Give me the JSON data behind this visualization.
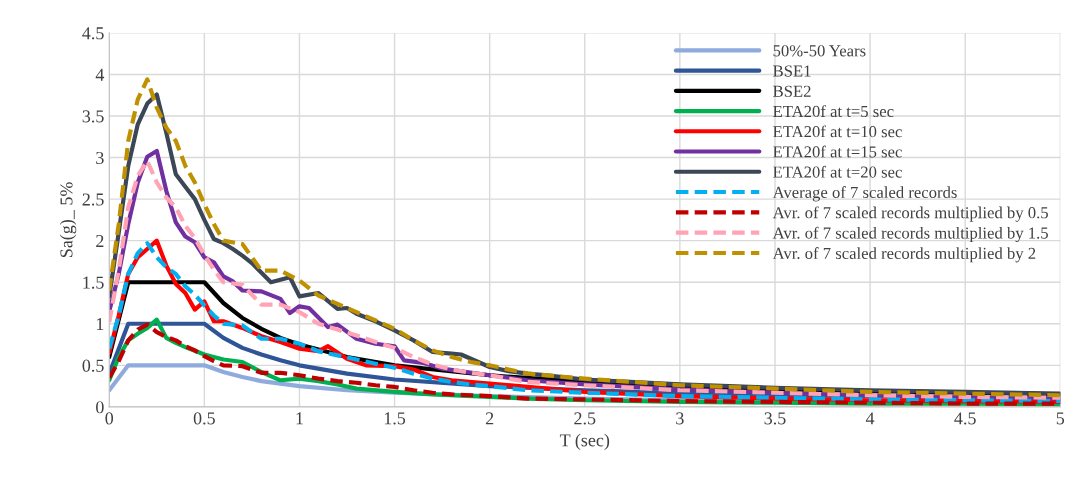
{
  "chart_data": {
    "type": "line",
    "xlabel": "T (sec)",
    "ylabel": "Sa(g)_ 5%",
    "xlim": [
      0,
      5
    ],
    "xticks": [
      0,
      0.5,
      1,
      1.5,
      2,
      2.5,
      3,
      3.5,
      4,
      4.5,
      5
    ],
    "ylim": [
      0,
      4.5
    ],
    "yticks": [
      0,
      0.5,
      1,
      1.5,
      2,
      2.5,
      3,
      3.5,
      4,
      4.5
    ],
    "grid": true,
    "legend": "top right",
    "marker": "none",
    "series": [
      {
        "name": "50%-50 Years",
        "color": "#8faadc",
        "line_style": "solid",
        "x": [
          0,
          0.1,
          0.5,
          0.6,
          0.7,
          0.8,
          0.9,
          1,
          1.25,
          1.5,
          2,
          2.5,
          3,
          3.5,
          4,
          4.5,
          5
        ],
        "values": [
          0.2,
          0.5,
          0.5,
          0.42,
          0.36,
          0.31,
          0.28,
          0.25,
          0.2,
          0.17,
          0.13,
          0.1,
          0.08,
          0.07,
          0.06,
          0.06,
          0.05
        ]
      },
      {
        "name": "BSE1",
        "color": "#2f5597",
        "line_style": "solid",
        "x": [
          0,
          0.1,
          0.5,
          0.6,
          0.7,
          0.8,
          0.9,
          1,
          1.25,
          1.5,
          2,
          2.5,
          3,
          3.5,
          4,
          4.5,
          5
        ],
        "values": [
          0.4,
          1,
          1,
          0.83,
          0.71,
          0.63,
          0.56,
          0.5,
          0.4,
          0.33,
          0.25,
          0.2,
          0.17,
          0.14,
          0.13,
          0.11,
          0.1
        ]
      },
      {
        "name": "BSE2",
        "color": "#000000",
        "line_style": "solid",
        "x": [
          0,
          0.1,
          0.5,
          0.6,
          0.7,
          0.8,
          0.9,
          1,
          1.25,
          1.5,
          2,
          2.5,
          3,
          3.5,
          4,
          4.5,
          5
        ],
        "values": [
          0.6,
          1.5,
          1.5,
          1.25,
          1.07,
          0.94,
          0.83,
          0.75,
          0.6,
          0.5,
          0.38,
          0.3,
          0.25,
          0.21,
          0.19,
          0.17,
          0.15
        ]
      },
      {
        "name": "ETA20f at t=5 sec",
        "color": "#00b050",
        "line_style": "solid",
        "x": [
          0,
          0.05,
          0.1,
          0.15,
          0.2,
          0.25,
          0.3,
          0.35,
          0.4,
          0.5,
          0.6,
          0.7,
          0.8,
          0.9,
          1.0,
          1.1,
          1.2,
          1.3,
          1.5,
          1.7,
          2.0,
          2.2,
          2.5,
          3,
          3.5,
          4,
          4.5,
          5
        ],
        "values": [
          0.32,
          0.6,
          0.8,
          0.88,
          0.95,
          1.05,
          0.83,
          0.77,
          0.72,
          0.63,
          0.57,
          0.54,
          0.42,
          0.32,
          0.34,
          0.31,
          0.27,
          0.22,
          0.18,
          0.15,
          0.12,
          0.1,
          0.08,
          0.06,
          0.05,
          0.04,
          0.04,
          0.03
        ]
      },
      {
        "name": "ETA20f at t=10 sec",
        "color": "#ff0000",
        "line_style": "solid",
        "x": [
          0,
          0.05,
          0.1,
          0.15,
          0.2,
          0.25,
          0.3,
          0.35,
          0.4,
          0.45,
          0.5,
          0.55,
          0.6,
          0.7,
          0.8,
          0.9,
          1.0,
          1.1,
          1.15,
          1.25,
          1.35,
          1.5,
          1.6,
          1.7,
          1.8,
          2.0,
          2.2,
          2.5,
          3,
          3.5,
          4,
          4.5,
          5
        ],
        "values": [
          0.65,
          1.1,
          1.6,
          1.8,
          1.9,
          2.0,
          1.7,
          1.48,
          1.37,
          1.17,
          1.27,
          1.03,
          1.03,
          0.95,
          0.85,
          0.78,
          0.7,
          0.67,
          0.73,
          0.58,
          0.5,
          0.49,
          0.45,
          0.36,
          0.32,
          0.28,
          0.24,
          0.18,
          0.13,
          0.1,
          0.08,
          0.07,
          0.06
        ]
      },
      {
        "name": "ETA20f at t=15 sec",
        "color": "#7030a0",
        "line_style": "solid",
        "x": [
          0,
          0.05,
          0.1,
          0.15,
          0.2,
          0.25,
          0.3,
          0.35,
          0.4,
          0.45,
          0.5,
          0.55,
          0.6,
          0.65,
          0.7,
          0.8,
          0.9,
          0.95,
          1.0,
          1.05,
          1.15,
          1.2,
          1.3,
          1.4,
          1.5,
          1.55,
          1.65,
          1.75,
          2.0,
          2.2,
          2.5,
          3,
          3.5,
          4,
          4.5,
          5
        ],
        "values": [
          1.15,
          1.6,
          2.2,
          2.7,
          3.01,
          3.08,
          2.6,
          2.22,
          2.05,
          1.98,
          1.8,
          1.74,
          1.57,
          1.51,
          1.4,
          1.39,
          1.3,
          1.13,
          1.21,
          1.19,
          0.96,
          0.99,
          0.82,
          0.76,
          0.73,
          0.56,
          0.53,
          0.46,
          0.38,
          0.32,
          0.27,
          0.21,
          0.17,
          0.14,
          0.12,
          0.1
        ]
      },
      {
        "name": "ETA20f at t=20 sec",
        "color": "#3b4656",
        "line_style": "solid",
        "x": [
          0,
          0.05,
          0.1,
          0.15,
          0.2,
          0.25,
          0.3,
          0.35,
          0.4,
          0.45,
          0.5,
          0.55,
          0.6,
          0.65,
          0.7,
          0.75,
          0.85,
          0.95,
          1.0,
          1.1,
          1.2,
          1.25,
          1.3,
          1.4,
          1.5,
          1.6,
          1.7,
          1.8,
          1.85,
          2.0,
          2.1,
          2.2,
          2.3,
          2.5,
          3,
          3.5,
          4,
          4.5,
          5
        ],
        "values": [
          1.33,
          2.1,
          2.9,
          3.4,
          3.65,
          3.76,
          3.3,
          2.8,
          2.65,
          2.5,
          2.25,
          2.02,
          1.97,
          1.9,
          1.82,
          1.73,
          1.5,
          1.56,
          1.33,
          1.37,
          1.18,
          1.19,
          1.12,
          1.03,
          0.92,
          0.8,
          0.66,
          0.64,
          0.63,
          0.48,
          0.43,
          0.4,
          0.38,
          0.33,
          0.27,
          0.23,
          0.2,
          0.18,
          0.16
        ]
      },
      {
        "name": "Average of 7 scaled records",
        "color": "#00b0f0",
        "line_style": "dashed",
        "x": [
          0,
          0.05,
          0.1,
          0.15,
          0.2,
          0.25,
          0.3,
          0.35,
          0.4,
          0.45,
          0.5,
          0.55,
          0.6,
          0.7,
          0.8,
          0.9,
          1.0,
          1.1,
          1.2,
          1.3,
          1.4,
          1.5,
          1.6,
          1.7,
          1.8,
          1.9,
          2.0,
          2.2,
          2.5,
          3,
          3.5,
          4,
          4.5,
          5
        ],
        "values": [
          0.7,
          1.1,
          1.6,
          1.85,
          1.97,
          1.8,
          1.68,
          1.6,
          1.45,
          1.35,
          1.22,
          1.1,
          1.0,
          0.98,
          0.82,
          0.82,
          0.76,
          0.67,
          0.62,
          0.57,
          0.52,
          0.47,
          0.4,
          0.34,
          0.3,
          0.27,
          0.25,
          0.2,
          0.17,
          0.13,
          0.11,
          0.09,
          0.08,
          0.07
        ]
      },
      {
        "name": "Avr. of 7 scaled records multiplied by 0.5",
        "color": "#c00000",
        "line_style": "dashed",
        "x": [
          0,
          0.05,
          0.1,
          0.15,
          0.2,
          0.25,
          0.3,
          0.35,
          0.4,
          0.45,
          0.5,
          0.55,
          0.6,
          0.7,
          0.8,
          0.9,
          1.0,
          1.1,
          1.2,
          1.3,
          1.4,
          1.5,
          1.6,
          1.7,
          1.8,
          1.9,
          2.0,
          2.2,
          2.5,
          3,
          3.5,
          4,
          4.5,
          5
        ],
        "values": [
          0.35,
          0.55,
          0.8,
          0.93,
          0.99,
          0.9,
          0.84,
          0.8,
          0.73,
          0.68,
          0.61,
          0.55,
          0.5,
          0.49,
          0.41,
          0.41,
          0.38,
          0.34,
          0.31,
          0.29,
          0.26,
          0.24,
          0.2,
          0.17,
          0.15,
          0.14,
          0.13,
          0.1,
          0.09,
          0.07,
          0.06,
          0.05,
          0.04,
          0.04
        ]
      },
      {
        "name": "Avr. of 7 scaled records multiplied by 1.5",
        "color": "#ffa3b5",
        "line_style": "dashed",
        "x": [
          0,
          0.05,
          0.1,
          0.15,
          0.2,
          0.25,
          0.3,
          0.35,
          0.4,
          0.45,
          0.5,
          0.55,
          0.6,
          0.7,
          0.8,
          0.9,
          1.0,
          1.1,
          1.2,
          1.3,
          1.4,
          1.5,
          1.6,
          1.7,
          1.8,
          1.9,
          2.0,
          2.2,
          2.5,
          3,
          3.5,
          4,
          4.5,
          5
        ],
        "values": [
          1.02,
          1.65,
          2.4,
          2.78,
          2.96,
          2.7,
          2.52,
          2.4,
          2.18,
          2.03,
          1.83,
          1.65,
          1.5,
          1.47,
          1.23,
          1.23,
          1.14,
          1.0,
          0.93,
          0.86,
          0.78,
          0.71,
          0.6,
          0.51,
          0.45,
          0.41,
          0.38,
          0.3,
          0.26,
          0.2,
          0.17,
          0.14,
          0.12,
          0.11
        ]
      },
      {
        "name": "Avr. of 7 scaled records multiplied by 2",
        "color": "#bf9000",
        "line_style": "dashed",
        "x": [
          0,
          0.05,
          0.1,
          0.15,
          0.2,
          0.25,
          0.3,
          0.35,
          0.4,
          0.45,
          0.5,
          0.55,
          0.6,
          0.7,
          0.8,
          0.9,
          1.0,
          1.1,
          1.2,
          1.3,
          1.4,
          1.5,
          1.6,
          1.7,
          1.8,
          1.9,
          2.0,
          2.2,
          2.5,
          3,
          3.5,
          4,
          4.5,
          5
        ],
        "values": [
          1.4,
          2.2,
          3.2,
          3.7,
          3.94,
          3.6,
          3.36,
          3.2,
          2.9,
          2.7,
          2.44,
          2.2,
          2.0,
          1.96,
          1.64,
          1.64,
          1.52,
          1.34,
          1.24,
          1.14,
          1.04,
          0.94,
          0.8,
          0.68,
          0.6,
          0.54,
          0.5,
          0.4,
          0.34,
          0.26,
          0.22,
          0.18,
          0.16,
          0.14
        ]
      }
    ]
  }
}
